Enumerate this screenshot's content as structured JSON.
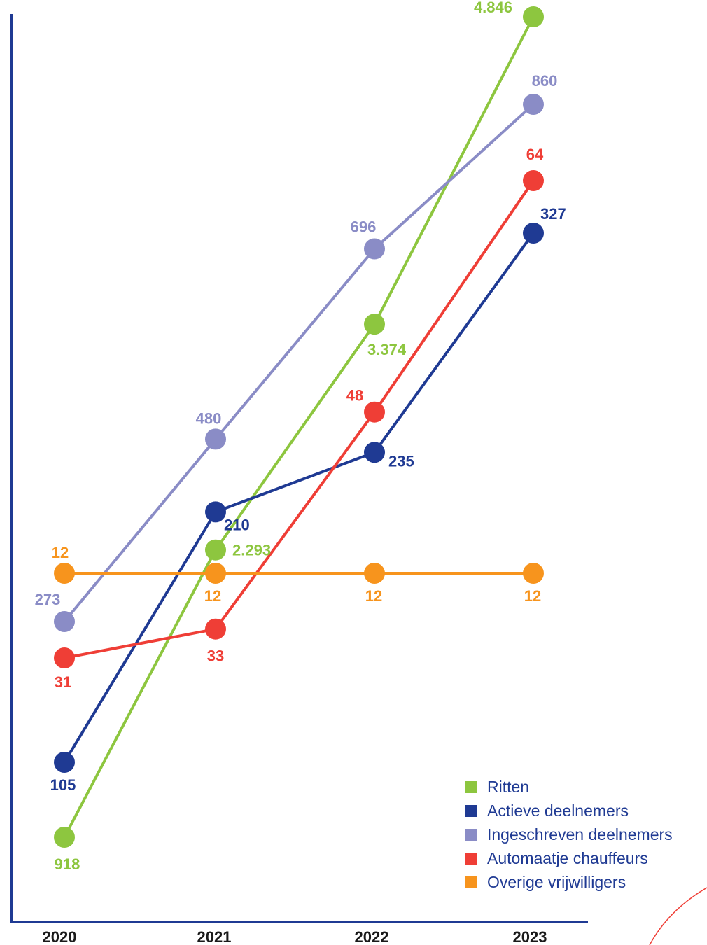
{
  "chart_data": {
    "type": "line",
    "x": [
      "2020",
      "2021",
      "2022",
      "2023"
    ],
    "grid": false,
    "legend_position": "bottom-right",
    "axis_color": "#1f3a93",
    "series": [
      {
        "name": "Ritten",
        "color": "#8dc63f",
        "values": [
          918,
          2293,
          3374,
          4846
        ],
        "labels": [
          "918",
          "2.293",
          "3.374",
          "4.846"
        ]
      },
      {
        "name": "Actieve deelnemers",
        "color": "#1f3a93",
        "values": [
          105,
          210,
          235,
          327
        ],
        "labels": [
          "105",
          "210",
          "235",
          "327"
        ]
      },
      {
        "name": "Ingeschreven deelnemers",
        "color": "#8a8cc6",
        "values": [
          273,
          480,
          696,
          860
        ],
        "labels": [
          "273",
          "480",
          "696",
          "860"
        ]
      },
      {
        "name": "Automaatje chauffeurs",
        "color": "#ef3e36",
        "values": [
          31,
          33,
          48,
          64
        ],
        "labels": [
          "31",
          "33",
          "48",
          "64"
        ]
      },
      {
        "name": "Overige vrijwilligers",
        "color": "#f7941d",
        "values": [
          12,
          12,
          12,
          12
        ],
        "labels": [
          "12",
          "12",
          "12",
          "12"
        ]
      }
    ]
  }
}
